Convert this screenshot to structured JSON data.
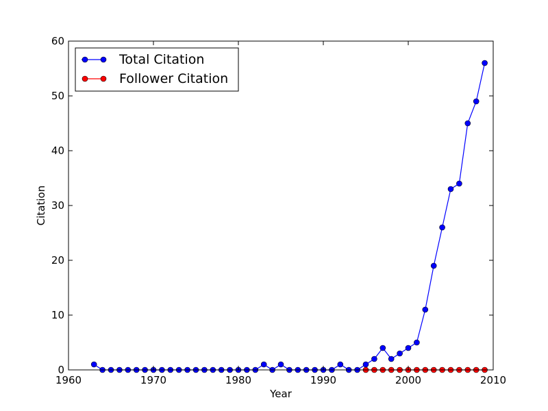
{
  "chart_data": {
    "type": "line",
    "xlabel": "Year",
    "ylabel": "Citation",
    "xlim": [
      1960,
      2010
    ],
    "ylim": [
      0,
      60
    ],
    "xticks": [
      1960,
      1970,
      1980,
      1990,
      2000,
      2010
    ],
    "yticks": [
      0,
      10,
      20,
      30,
      40,
      50,
      60
    ],
    "grid": false,
    "legend_position": "upper-left",
    "x": [
      1963,
      1964,
      1965,
      1966,
      1967,
      1968,
      1969,
      1970,
      1971,
      1972,
      1973,
      1974,
      1975,
      1976,
      1977,
      1978,
      1979,
      1980,
      1981,
      1982,
      1983,
      1984,
      1985,
      1986,
      1987,
      1988,
      1989,
      1990,
      1991,
      1992,
      1993,
      1994,
      1995,
      1996,
      1997,
      1998,
      1999,
      2000,
      2001,
      2002,
      2003,
      2004,
      2005,
      2006,
      2007,
      2008,
      2009
    ],
    "series": [
      {
        "name": "Total Citation",
        "color": "#0000ff",
        "x": [
          1963,
          1964,
          1965,
          1966,
          1967,
          1968,
          1969,
          1970,
          1971,
          1972,
          1973,
          1974,
          1975,
          1976,
          1977,
          1978,
          1979,
          1980,
          1981,
          1982,
          1983,
          1984,
          1985,
          1986,
          1987,
          1988,
          1989,
          1990,
          1991,
          1992,
          1993,
          1994,
          1995,
          1996,
          1997,
          1998,
          1999,
          2000,
          2001,
          2002,
          2003,
          2004,
          2005,
          2006,
          2007,
          2008,
          2009
        ],
        "values": [
          1,
          0,
          0,
          0,
          0,
          0,
          0,
          0,
          0,
          0,
          0,
          0,
          0,
          0,
          0,
          0,
          0,
          0,
          0,
          0,
          1,
          0,
          1,
          0,
          0,
          0,
          0,
          0,
          0,
          1,
          0,
          0,
          1,
          2,
          4,
          2,
          3,
          4,
          5,
          11,
          19,
          26,
          33,
          34,
          45,
          49,
          56
        ]
      },
      {
        "name": "Follower Citation",
        "color": "#ff0000",
        "x": [
          1995,
          1996,
          1997,
          1998,
          1999,
          2000,
          2001,
          2002,
          2003,
          2004,
          2005,
          2006,
          2007,
          2008,
          2009
        ],
        "values": [
          0,
          0,
          0,
          0,
          0,
          0,
          0,
          0,
          0,
          0,
          0,
          0,
          0,
          0,
          0
        ]
      }
    ]
  }
}
